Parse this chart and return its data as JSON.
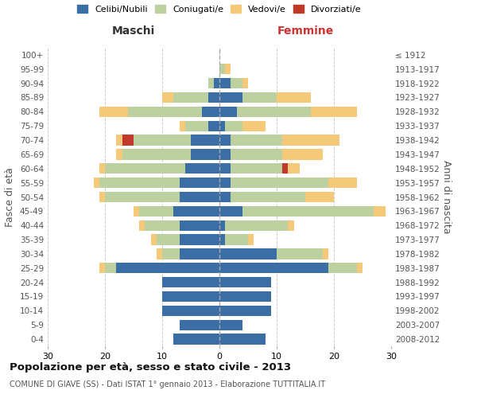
{
  "age_groups": [
    "0-4",
    "5-9",
    "10-14",
    "15-19",
    "20-24",
    "25-29",
    "30-34",
    "35-39",
    "40-44",
    "45-49",
    "50-54",
    "55-59",
    "60-64",
    "65-69",
    "70-74",
    "75-79",
    "80-84",
    "85-89",
    "90-94",
    "95-99",
    "100+"
  ],
  "birth_years": [
    "2008-2012",
    "2003-2007",
    "1998-2002",
    "1993-1997",
    "1988-1992",
    "1983-1987",
    "1978-1982",
    "1973-1977",
    "1968-1972",
    "1963-1967",
    "1958-1962",
    "1953-1957",
    "1948-1952",
    "1943-1947",
    "1938-1942",
    "1933-1937",
    "1928-1932",
    "1923-1927",
    "1918-1922",
    "1913-1917",
    "≤ 1912"
  ],
  "male": {
    "celibi": [
      8,
      7,
      10,
      10,
      10,
      18,
      7,
      7,
      7,
      8,
      7,
      7,
      6,
      5,
      5,
      2,
      3,
      2,
      1,
      0,
      0
    ],
    "coniugati": [
      0,
      0,
      0,
      0,
      0,
      2,
      3,
      4,
      6,
      6,
      13,
      14,
      14,
      12,
      10,
      4,
      13,
      6,
      1,
      0,
      0
    ],
    "vedovi": [
      0,
      0,
      0,
      0,
      0,
      1,
      1,
      1,
      1,
      1,
      1,
      1,
      1,
      1,
      1,
      1,
      5,
      2,
      0,
      0,
      0
    ],
    "divorziati": [
      0,
      0,
      0,
      0,
      0,
      0,
      0,
      0,
      0,
      0,
      0,
      0,
      0,
      0,
      2,
      0,
      0,
      0,
      0,
      0,
      0
    ]
  },
  "female": {
    "nubili": [
      8,
      4,
      9,
      9,
      9,
      19,
      10,
      1,
      1,
      4,
      2,
      2,
      2,
      2,
      2,
      1,
      3,
      4,
      2,
      0,
      0
    ],
    "coniugate": [
      0,
      0,
      0,
      0,
      0,
      5,
      8,
      4,
      11,
      23,
      13,
      17,
      9,
      9,
      9,
      3,
      13,
      6,
      2,
      1,
      0
    ],
    "vedove": [
      0,
      0,
      0,
      0,
      0,
      1,
      1,
      1,
      1,
      2,
      5,
      5,
      2,
      7,
      10,
      4,
      8,
      6,
      1,
      1,
      0
    ],
    "divorziate": [
      0,
      0,
      0,
      0,
      0,
      0,
      0,
      0,
      0,
      0,
      0,
      0,
      1,
      0,
      0,
      0,
      0,
      0,
      0,
      0,
      0
    ]
  },
  "colors": {
    "celibi": "#3A6EA5",
    "coniugati": "#BDD09F",
    "vedovi": "#F5C97A",
    "divorziati": "#C0392B"
  },
  "xlim": 30,
  "title": "Popolazione per età, sesso e stato civile - 2013",
  "subtitle": "COMUNE DI GIAVE (SS) - Dati ISTAT 1° gennaio 2013 - Elaborazione TUTTITALIA.IT",
  "ylabel_left": "Fasce di età",
  "ylabel_right": "Anni di nascita",
  "xlabel_left": "Maschi",
  "xlabel_right": "Femmine",
  "legend_labels": [
    "Celibi/Nubili",
    "Coniugati/e",
    "Vedovi/e",
    "Divorziati/e"
  ],
  "background_color": "#ffffff",
  "grid_color": "#cccccc"
}
